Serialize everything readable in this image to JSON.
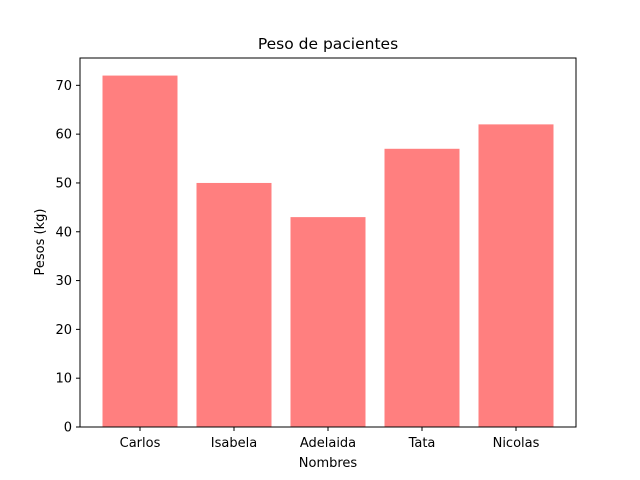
{
  "chart_data": {
    "type": "bar",
    "title": "Peso de pacientes",
    "xlabel": "Nombres",
    "ylabel": "Pesos (kg)",
    "categories": [
      "Carlos",
      "Isabela",
      "Adelaida",
      "Tata",
      "Nicolas"
    ],
    "values": [
      72,
      50,
      43,
      57,
      62
    ],
    "ylim": [
      0,
      75.6
    ],
    "yticks": [
      0,
      10,
      20,
      30,
      40,
      50,
      60,
      70
    ],
    "ytick_labels": [
      "0",
      "10",
      "20",
      "30",
      "40",
      "50",
      "60",
      "70"
    ],
    "bar_color": "#ff7f7f",
    "grid": false,
    "legend": "none"
  }
}
